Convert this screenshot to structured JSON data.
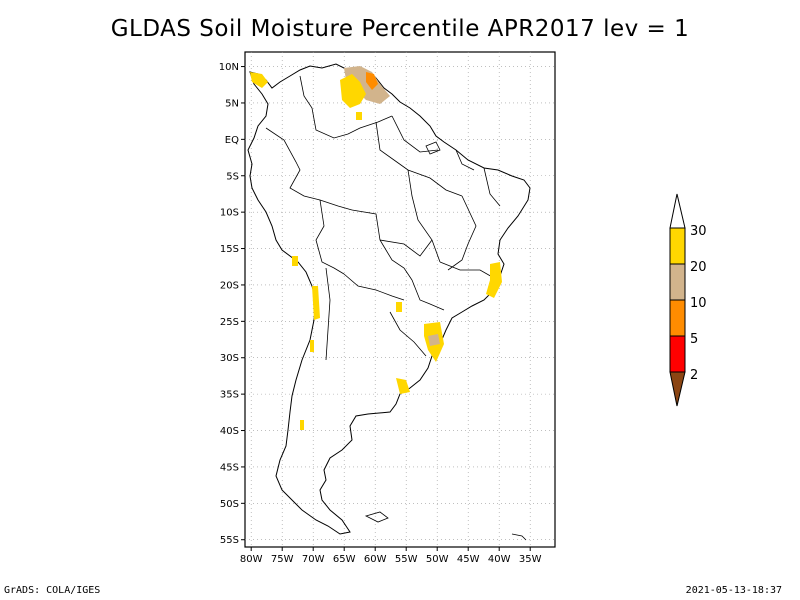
{
  "title": "GLDAS Soil Moisture Percentile APR2017 lev = 1",
  "footer_left": "GrADS: COLA/IGES",
  "footer_right": "2021-05-13-18:37",
  "lat_labels": [
    "10N",
    "5N",
    "EQ",
    "5S",
    "10S",
    "15S",
    "20S",
    "25S",
    "30S",
    "35S",
    "40S",
    "45S",
    "50S",
    "55S"
  ],
  "lon_labels": [
    "80W",
    "75W",
    "70W",
    "65W",
    "60W",
    "55W",
    "50W",
    "45W",
    "40W",
    "35W"
  ],
  "colorbar": {
    "labels": [
      "30",
      "20",
      "10",
      "5",
      "2"
    ],
    "colors": [
      "#ffffff",
      "#ffd700",
      "#d2b48c",
      "#ff8c00",
      "#ff0000",
      "#8b4513"
    ]
  },
  "anomalies": {
    "percentile_20_30_color": "#ffd700",
    "percentile_10_20_color": "#d2b48c",
    "percentile_5_10_color": "#ff8c00"
  }
}
